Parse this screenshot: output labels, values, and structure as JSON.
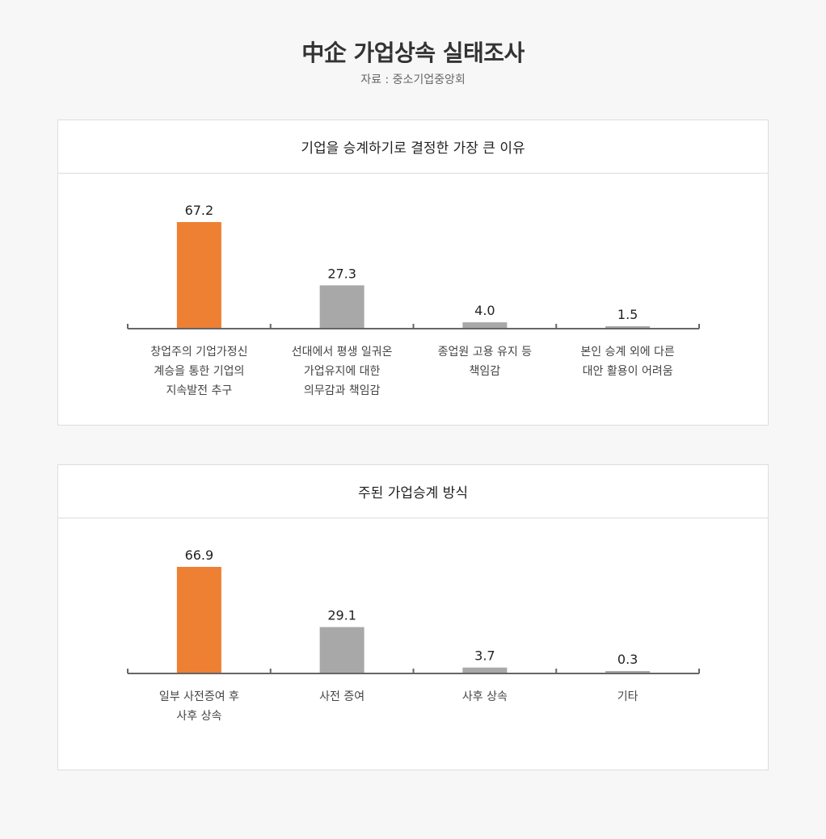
{
  "header": {
    "title": "中企 가업상속 실태조사",
    "source": "자료 : 중소기업중앙회"
  },
  "colors": {
    "highlight": "#ee8033",
    "default": "#a8a8a8",
    "axis": "#666666"
  },
  "chart_data": [
    {
      "type": "bar",
      "title": "기업을 승계하기로 결정한 가장 큰 이유",
      "categories": [
        [
          "창업주의 기업가정신",
          "계승을 통한 기업의",
          "지속발전 추구"
        ],
        [
          "선대에서 평생 일궈온",
          "가업유지에 대한",
          "의무감과 책임감"
        ],
        [
          "종업원 고용 유지 등",
          "책임감"
        ],
        [
          "본인 승계 외에 다른",
          "대안 활용이 어려움"
        ]
      ],
      "values": [
        67.2,
        27.3,
        4.0,
        1.5
      ],
      "value_labels": [
        "67.2",
        "27.3",
        "4.0",
        "1.5"
      ],
      "highlight_index": 0,
      "ylim": [
        0,
        67.2
      ],
      "grid": false
    },
    {
      "type": "bar",
      "title": "주된 가업승계 방식",
      "categories": [
        [
          "일부 사전증여 후",
          "사후 상속"
        ],
        [
          "사전 증여"
        ],
        [
          "사후 상속"
        ],
        [
          "기타"
        ]
      ],
      "values": [
        66.9,
        29.1,
        3.7,
        0.3
      ],
      "value_labels": [
        "66.9",
        "29.1",
        "3.7",
        "0.3"
      ],
      "highlight_index": 0,
      "ylim": [
        0,
        66.9
      ],
      "grid": false
    }
  ]
}
